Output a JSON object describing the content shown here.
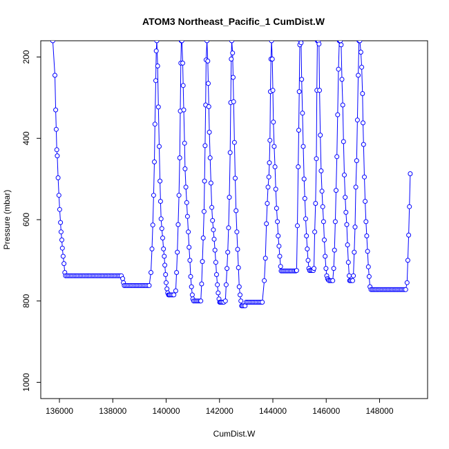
{
  "chart_data": {
    "type": "line",
    "title": "ATOM3 Northeast_Pacific_1 CumDist.W",
    "xlabel": "CumDist.W",
    "ylabel": "Pressure (mbar)",
    "xlim": [
      135300,
      149800
    ],
    "ylim": [
      1040,
      160
    ],
    "y_reversed": true,
    "xticks": [
      136000,
      138000,
      140000,
      142000,
      144000,
      146000,
      148000
    ],
    "xtick_labels": [
      "136000",
      "138000",
      "140000",
      "142000",
      "144000",
      "146000",
      "148000"
    ],
    "yticks": [
      200,
      400,
      600,
      800,
      1000
    ],
    "ytick_labels": [
      "200",
      "400",
      "600",
      "800",
      "1000"
    ],
    "grid": false,
    "legend": "none",
    "series_color": "#0000ff",
    "marker": "open-circle",
    "segments": [
      {
        "kind": "ramp",
        "x": [
          135750,
          135830,
          135860,
          135880,
          135900,
          135920,
          135950,
          135980,
          136010,
          136040,
          136060,
          136090,
          136110,
          136140,
          136170,
          136200
        ],
        "y": [
          160,
          245,
          330,
          378,
          428,
          443,
          497,
          540,
          575,
          607,
          630,
          650,
          670,
          690,
          708,
          730
        ]
      },
      {
        "kind": "flat",
        "x_start": 136230,
        "x_end": 138340,
        "step": 55,
        "y": 738
      },
      {
        "kind": "ramp",
        "x": [
          138370,
          138400
        ],
        "y": [
          745,
          755
        ]
      },
      {
        "kind": "flat",
        "x_start": 138430,
        "x_end": 139380,
        "step": 55,
        "y": 762
      },
      {
        "kind": "ramp",
        "x": [
          139430,
          139470,
          139500,
          139530,
          139560,
          139580,
          139610,
          139630,
          139650
        ],
        "y": [
          730,
          672,
          613,
          540,
          458,
          365,
          258,
          185,
          160
        ]
      },
      {
        "kind": "ramp",
        "x": [
          139680,
          139710,
          139740,
          139770,
          139790,
          139810,
          139840,
          139870,
          139900,
          139930,
          139950,
          139980,
          140000,
          140030,
          140060,
          140090,
          140110
        ],
        "y": [
          222,
          323,
          420,
          505,
          555,
          598,
          622,
          645,
          672,
          690,
          712,
          735,
          755,
          770,
          780,
          785,
          785
        ]
      },
      {
        "kind": "flat",
        "x_start": 140140,
        "x_end": 140330,
        "step": 50,
        "y": 785
      },
      {
        "kind": "ramp",
        "x": [
          140360,
          140390,
          140420,
          140450,
          140480,
          140510,
          140530,
          140550,
          140570,
          140590
        ],
        "y": [
          775,
          730,
          680,
          612,
          540,
          448,
          333,
          215,
          160,
          160
        ]
      },
      {
        "kind": "ramp",
        "x": [
          140620,
          140640,
          140660,
          140690,
          140710,
          140740,
          140770,
          140800,
          140830,
          140860,
          140890,
          140920,
          140950,
          140980,
          141000
        ],
        "y": [
          215,
          270,
          330,
          412,
          475,
          520,
          558,
          592,
          630,
          668,
          700,
          740,
          765,
          785,
          795
        ]
      },
      {
        "kind": "flat",
        "x_start": 141030,
        "x_end": 141280,
        "step": 50,
        "y": 800
      },
      {
        "kind": "ramp",
        "x": [
          141300,
          141330,
          141360,
          141390,
          141420,
          141440,
          141460,
          141480,
          141500,
          141530
        ],
        "y": [
          800,
          758,
          703,
          645,
          580,
          505,
          418,
          318,
          207,
          160
        ]
      },
      {
        "kind": "ramp",
        "x": [
          141560,
          141580,
          141600,
          141620,
          141650,
          141680,
          141710,
          141740,
          141770,
          141800,
          141830,
          141860,
          141890,
          141920,
          141950,
          141980,
          142010,
          142030
        ],
        "y": [
          210,
          265,
          322,
          385,
          448,
          510,
          570,
          602,
          625,
          648,
          675,
          705,
          735,
          760,
          780,
          795,
          803,
          803
        ]
      },
      {
        "kind": "flat",
        "x_start": 142060,
        "x_end": 142200,
        "step": 50,
        "y": 803
      },
      {
        "kind": "ramp",
        "x": [
          142220,
          142250,
          142280,
          142310,
          142340,
          142370,
          142400,
          142420,
          142440,
          142460
        ],
        "y": [
          800,
          760,
          720,
          680,
          620,
          545,
          435,
          312,
          205,
          160
        ]
      },
      {
        "kind": "ramp",
        "x": [
          142490,
          142510,
          142530,
          142560,
          142590,
          142620,
          142650,
          142680,
          142710,
          142740,
          142770,
          142800,
          142830
        ],
        "y": [
          190,
          250,
          310,
          410,
          498,
          578,
          630,
          673,
          718,
          765,
          785,
          800,
          812
        ]
      },
      {
        "kind": "flat",
        "x_start": 142860,
        "x_end": 142980,
        "step": 50,
        "y": 812
      },
      {
        "kind": "flat",
        "x_start": 143000,
        "x_end": 143640,
        "step": 55,
        "y": 803
      },
      {
        "kind": "ramp",
        "x": [
          143680,
          143720,
          143760,
          143790,
          143820,
          143850,
          143870,
          143890,
          143910,
          143930,
          143950
        ],
        "y": [
          750,
          695,
          610,
          560,
          520,
          495,
          460,
          405,
          285,
          205,
          160
        ]
      },
      {
        "kind": "ramp",
        "x": [
          143980,
          144000,
          144020,
          144050,
          144080,
          144110,
          144140,
          144170,
          144200,
          144230,
          144260,
          144290
        ],
        "y": [
          205,
          282,
          360,
          420,
          470,
          525,
          572,
          605,
          640,
          665,
          690,
          715
        ]
      },
      {
        "kind": "flat",
        "x_start": 144310,
        "x_end": 144870,
        "step": 50,
        "y": 726
      },
      {
        "kind": "ramp",
        "x": [
          144890,
          144920,
          144950,
          144970,
          144990,
          145010,
          145030
        ],
        "y": [
          725,
          615,
          470,
          380,
          285,
          170,
          160
        ]
      },
      {
        "kind": "ramp",
        "x": [
          145060,
          145080,
          145110,
          145140,
          145170,
          145200,
          145230,
          145260,
          145290,
          145320,
          145350
        ],
        "y": [
          165,
          255,
          338,
          420,
          500,
          548,
          598,
          640,
          672,
          700,
          720
        ]
      },
      {
        "kind": "flat",
        "x_start": 145380,
        "x_end": 145520,
        "step": 45,
        "y": 725
      },
      {
        "kind": "ramp",
        "x": [
          145540,
          145570,
          145600,
          145630,
          145650,
          145670,
          145690,
          145710
        ],
        "y": [
          720,
          630,
          560,
          450,
          282,
          160,
          160,
          160
        ]
      },
      {
        "kind": "ramp",
        "x": [
          145730,
          145750,
          145780,
          145810,
          145840,
          145870,
          145900,
          145930,
          145960,
          145990,
          146020,
          146050,
          146080
        ],
        "y": [
          168,
          282,
          392,
          480,
          530,
          568,
          605,
          650,
          690,
          720,
          738,
          745,
          748
        ]
      },
      {
        "kind": "flat",
        "x_start": 146110,
        "x_end": 146250,
        "step": 45,
        "y": 750
      },
      {
        "kind": "ramp",
        "x": [
          146280,
          146310,
          146340,
          146370,
          146400,
          146430,
          146460,
          146490,
          146510,
          146530
        ],
        "y": [
          720,
          675,
          605,
          528,
          445,
          342,
          230,
          160,
          160,
          160
        ]
      },
      {
        "kind": "ramp",
        "x": [
          146560,
          146590,
          146620,
          146650,
          146680,
          146710,
          146740,
          146770,
          146800,
          146830,
          146860,
          146880
        ],
        "y": [
          170,
          255,
          318,
          408,
          490,
          545,
          582,
          612,
          662,
          705,
          738,
          750
        ]
      },
      {
        "kind": "flat",
        "x_start": 146900,
        "x_end": 147000,
        "step": 45,
        "y": 750
      },
      {
        "kind": "ramp",
        "x": [
          147020,
          147050,
          147080,
          147110,
          147140,
          147170,
          147200,
          147230,
          147260
        ],
        "y": [
          738,
          680,
          618,
          520,
          455,
          355,
          245,
          160,
          160
        ]
      },
      {
        "kind": "ramp",
        "x": [
          147300,
          147330,
          147360,
          147380,
          147400,
          147430,
          147460,
          147490,
          147520,
          147550,
          147580,
          147610,
          147640
        ],
        "y": [
          188,
          225,
          290,
          362,
          415,
          495,
          555,
          605,
          640,
          678,
          716,
          740,
          765
        ]
      },
      {
        "kind": "flat",
        "x_start": 147680,
        "x_end": 149000,
        "step": 50,
        "y": 772
      },
      {
        "kind": "ramp",
        "x": [
          149030,
          149060,
          149090,
          149120,
          149150
        ],
        "y": [
          755,
          700,
          638,
          568,
          487
        ]
      }
    ]
  }
}
